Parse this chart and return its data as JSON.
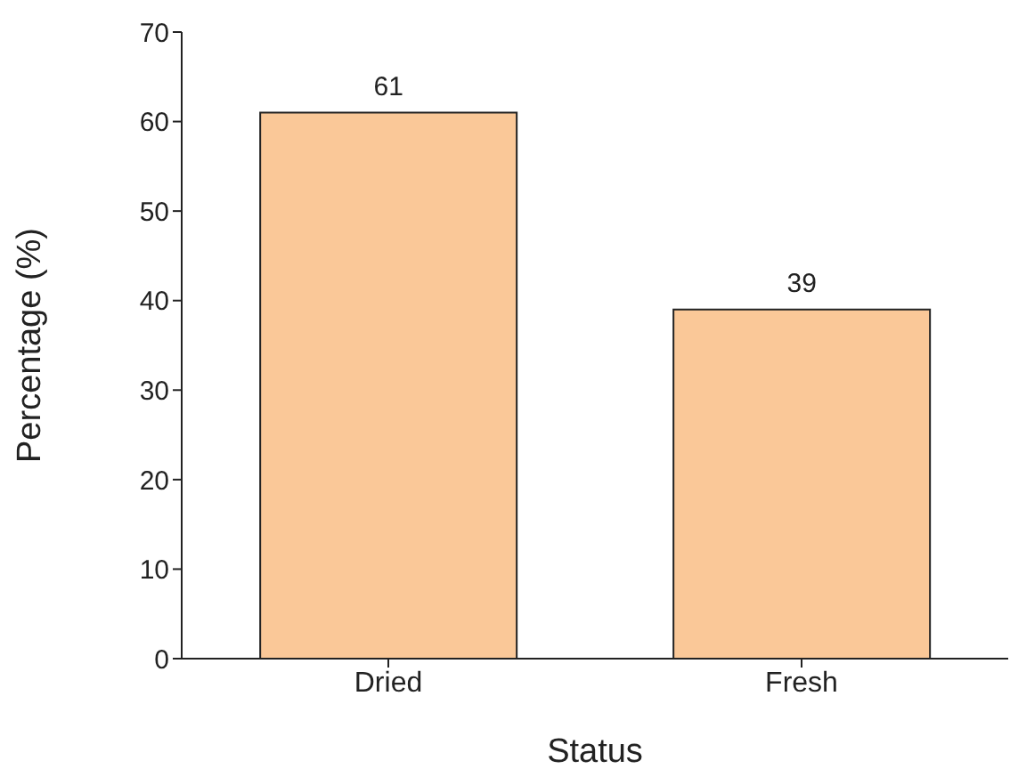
{
  "chart_data": {
    "type": "bar",
    "xlabel": "Status",
    "ylabel": "Percentage (%)",
    "categories": [
      "Dried",
      "Fresh"
    ],
    "values": [
      61,
      39
    ],
    "color": "#fac898",
    "ylim": [
      0,
      70
    ],
    "yticks": [
      0,
      10,
      20,
      30,
      40,
      50,
      60,
      70
    ],
    "data_labels": true,
    "grid": false,
    "legend": false
  }
}
